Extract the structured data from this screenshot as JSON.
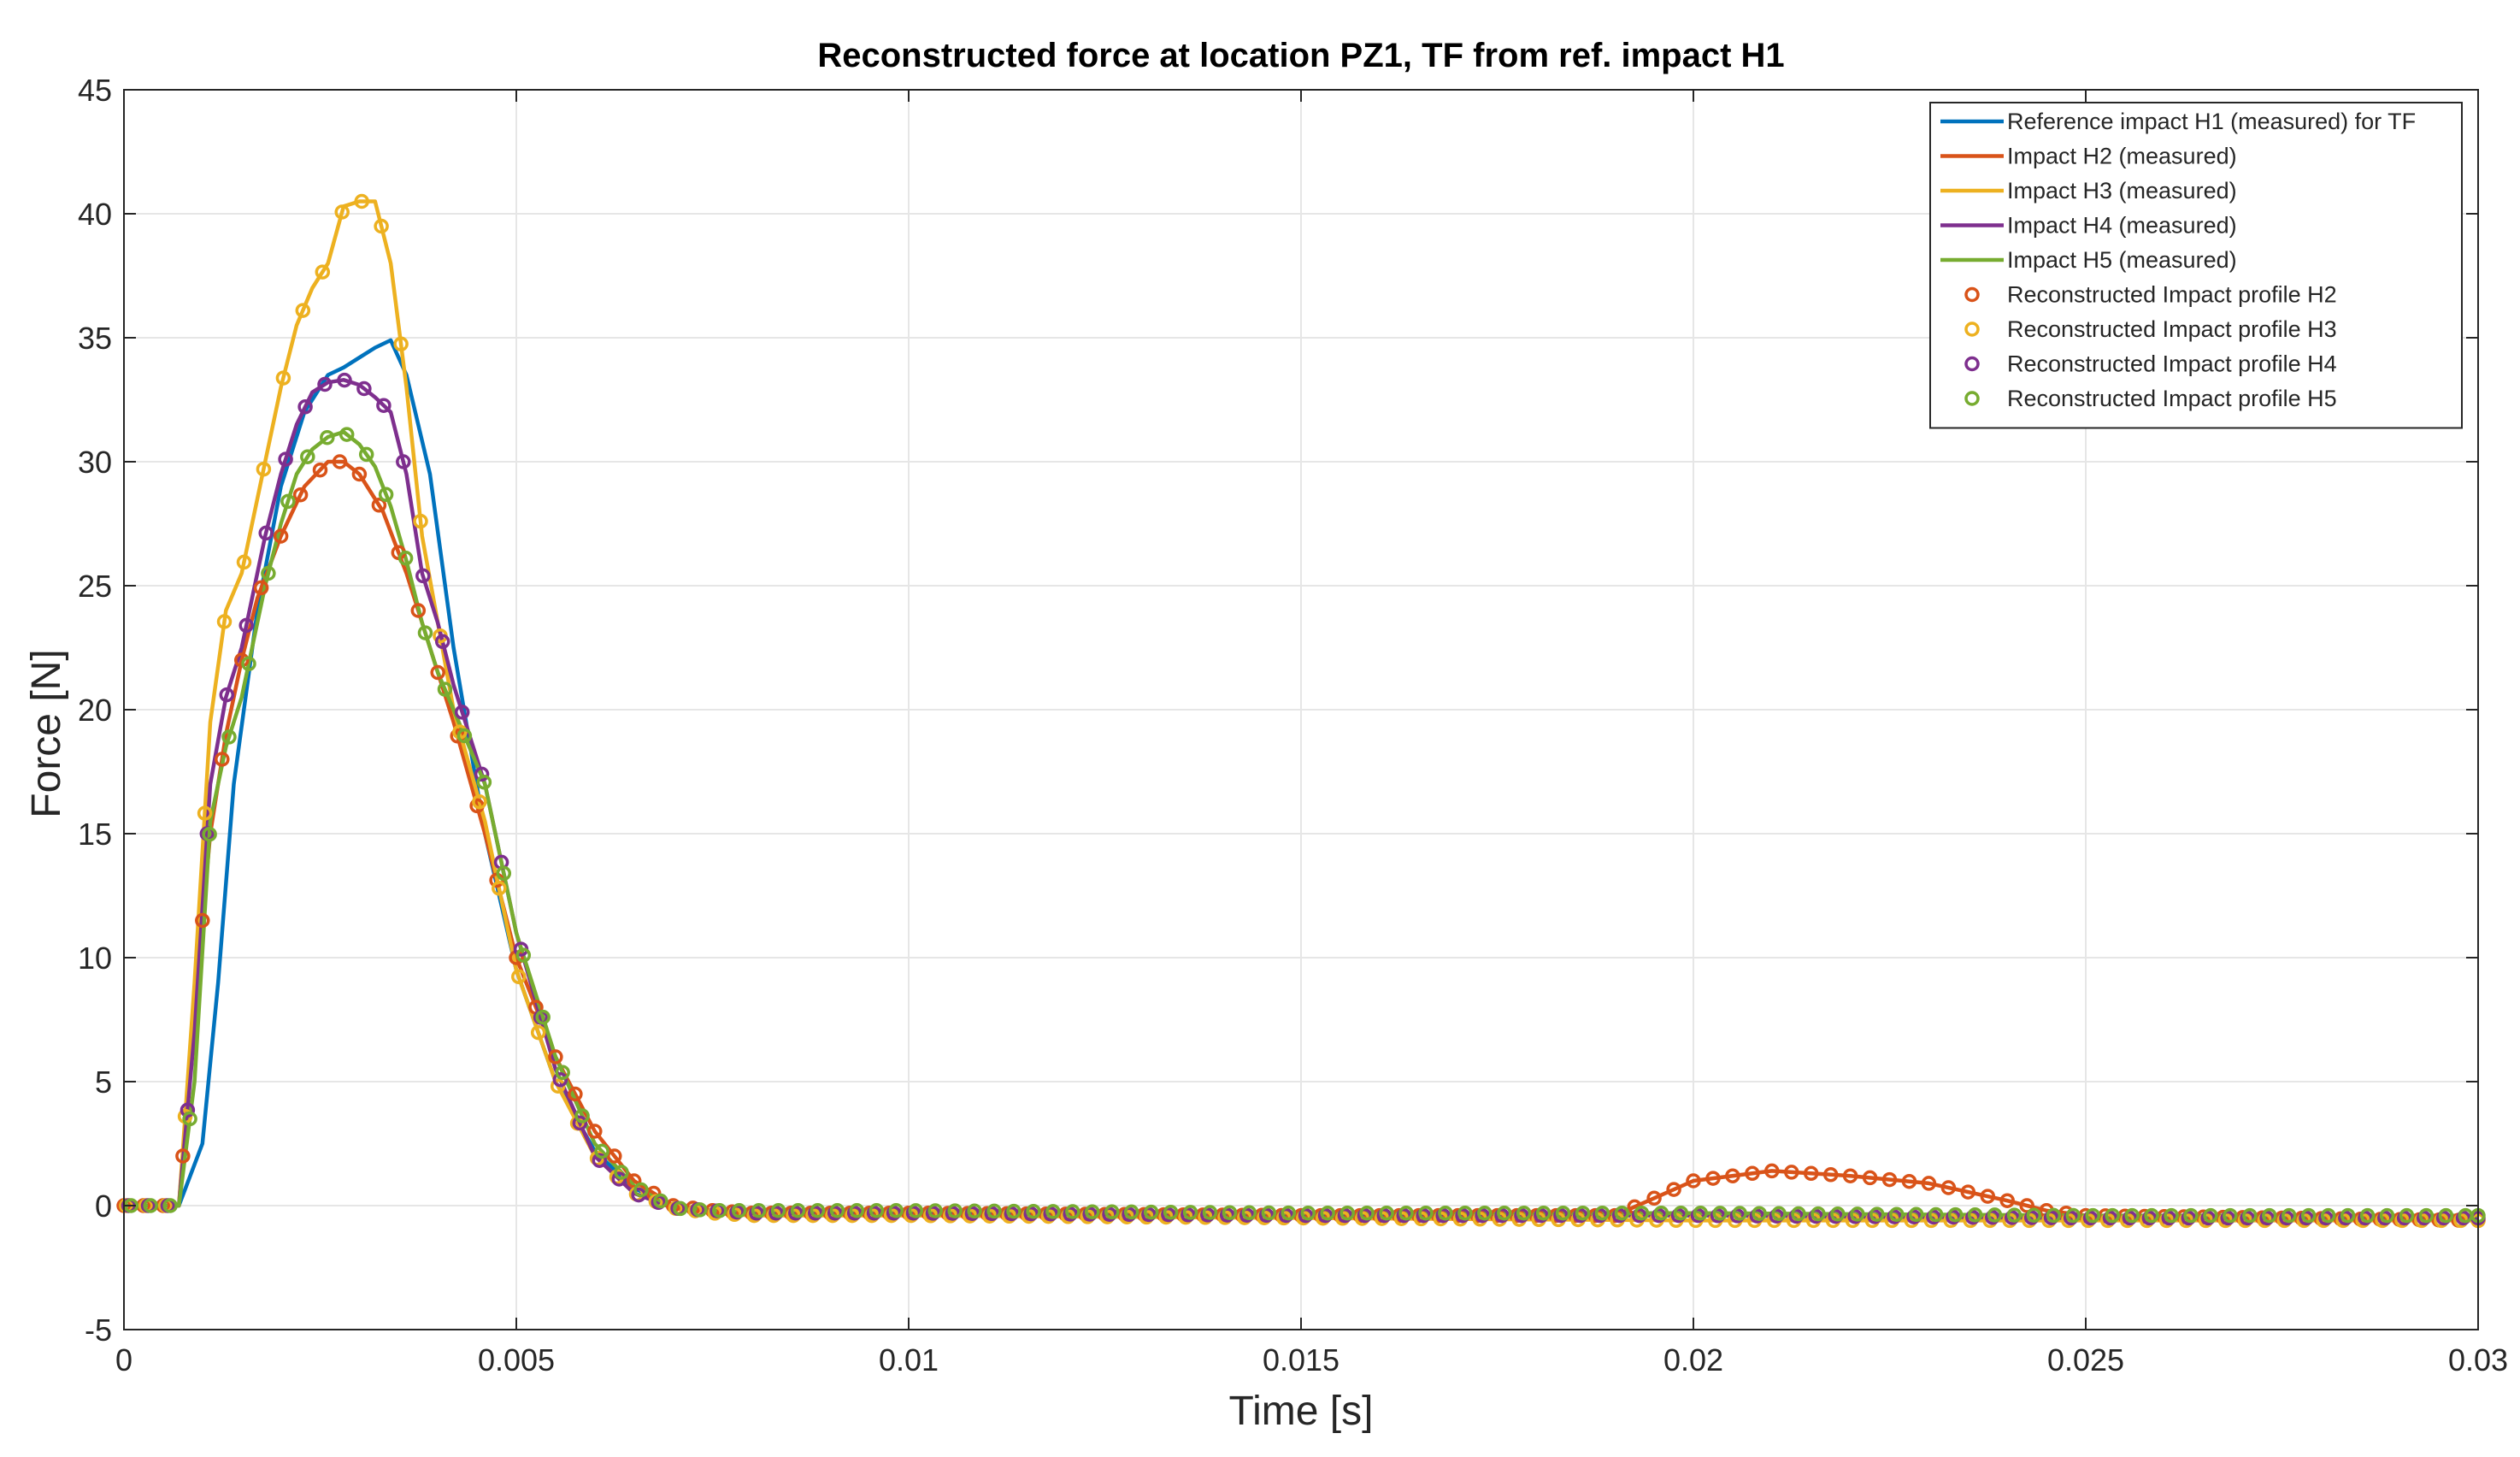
{
  "chart_data": {
    "type": "line",
    "title": "Reconstructed force at location PZ1, TF from ref. impact H1",
    "xlabel": "Time [s]",
    "ylabel": "Force [N]",
    "xlim": [
      0,
      0.03
    ],
    "ylim": [
      -5,
      45
    ],
    "xticks": [
      0,
      0.005,
      0.01,
      0.015,
      0.02,
      0.025,
      0.03
    ],
    "xtick_labels": [
      "0",
      "0.005",
      "0.01",
      "0.015",
      "0.02",
      "0.025",
      "0.03"
    ],
    "yticks": [
      -5,
      0,
      5,
      10,
      15,
      20,
      25,
      30,
      35,
      40,
      45
    ],
    "ytick_labels": [
      "-5",
      "0",
      "5",
      "10",
      "15",
      "20",
      "25",
      "30",
      "35",
      "40",
      "45"
    ],
    "grid": true,
    "legend_position": "top-right",
    "series": [
      {
        "name": "Reference impact H1 (measured) for TF",
        "color": "#0072BD",
        "style": "line",
        "x": [
          0,
          0.0007,
          0.001,
          0.0012,
          0.0014,
          0.0017,
          0.002,
          0.0023,
          0.0026,
          0.0028,
          0.003,
          0.0032,
          0.0034,
          0.0036,
          0.0039,
          0.0042,
          0.0046,
          0.005,
          0.0055,
          0.006,
          0.0065,
          0.007,
          0.0075,
          0.008,
          0.01,
          0.015,
          0.02,
          0.025,
          0.03
        ],
        "y": [
          0,
          0,
          2.5,
          9,
          17,
          24,
          29,
          32,
          33.5,
          33.8,
          34.2,
          34.6,
          34.9,
          33.5,
          29.5,
          22.5,
          15,
          9.5,
          5,
          2.2,
          0.7,
          0,
          -0.2,
          -0.2,
          -0.2,
          -0.3,
          -0.4,
          -0.5,
          -0.5
        ]
      },
      {
        "name": "Impact H2 (measured)",
        "color": "#D95319",
        "style": "line",
        "x": [
          0,
          0.0007,
          0.0009,
          0.0011,
          0.0013,
          0.0015,
          0.0017,
          0.002,
          0.0023,
          0.0026,
          0.0028,
          0.003,
          0.0033,
          0.0036,
          0.0039,
          0.0042,
          0.0046,
          0.005,
          0.0055,
          0.006,
          0.0065,
          0.007,
          0.0075,
          0.008,
          0.01,
          0.015,
          0.019,
          0.02,
          0.021,
          0.022,
          0.023,
          0.024,
          0.0245,
          0.025,
          0.03
        ],
        "y": [
          0,
          0,
          8,
          15,
          19,
          22,
          24.5,
          27,
          29,
          30,
          30,
          29.5,
          28,
          25.5,
          22.5,
          19.5,
          15,
          10,
          6,
          3,
          1,
          0,
          -0.2,
          -0.3,
          -0.3,
          -0.4,
          -0.4,
          1,
          1.4,
          1.2,
          0.9,
          0.2,
          -0.2,
          -0.4,
          -0.6
        ]
      },
      {
        "name": "Impact H3 (measured)",
        "color": "#EDB120",
        "style": "line",
        "x": [
          0,
          0.0007,
          0.0009,
          0.0011,
          0.0013,
          0.0015,
          0.0018,
          0.002,
          0.0022,
          0.0024,
          0.0026,
          0.0028,
          0.003,
          0.0032,
          0.0034,
          0.0036,
          0.0038,
          0.004,
          0.0042,
          0.0046,
          0.005,
          0.0055,
          0.006,
          0.0065,
          0.007,
          0.0075,
          0.008,
          0.01,
          0.015,
          0.02,
          0.025,
          0.03
        ],
        "y": [
          0,
          0,
          9,
          19.5,
          24,
          25.5,
          30,
          33,
          35.5,
          37,
          38,
          40.3,
          40.5,
          40.5,
          38,
          33,
          27,
          23.5,
          20,
          15.5,
          9.5,
          5,
          2,
          0.5,
          -0.1,
          -0.3,
          -0.4,
          -0.4,
          -0.5,
          -0.6,
          -0.6,
          -0.6
        ]
      },
      {
        "name": "Impact H4 (measured)",
        "color": "#7E2F8E",
        "style": "line",
        "x": [
          0,
          0.0007,
          0.0009,
          0.0011,
          0.0013,
          0.0015,
          0.0018,
          0.002,
          0.0022,
          0.0024,
          0.0026,
          0.0028,
          0.003,
          0.0032,
          0.0034,
          0.0036,
          0.0038,
          0.004,
          0.0042,
          0.0046,
          0.005,
          0.0055,
          0.006,
          0.0065,
          0.007,
          0.0075,
          0.008,
          0.01,
          0.015,
          0.02,
          0.025,
          0.03
        ],
        "y": [
          0,
          0,
          7,
          17,
          20.5,
          22.5,
          27,
          29.5,
          31.5,
          32.8,
          33.2,
          33.3,
          33.1,
          32.6,
          32,
          29.5,
          25.5,
          23.5,
          21,
          17,
          11,
          5.5,
          2,
          0.5,
          -0.1,
          -0.2,
          -0.3,
          -0.3,
          -0.4,
          -0.4,
          -0.5,
          -0.5
        ]
      },
      {
        "name": "Impact H5 (measured)",
        "color": "#77AC30",
        "style": "line",
        "x": [
          0,
          0.0007,
          0.0009,
          0.0011,
          0.0013,
          0.0015,
          0.0018,
          0.002,
          0.0022,
          0.0024,
          0.0026,
          0.0028,
          0.003,
          0.0032,
          0.0034,
          0.0036,
          0.0038,
          0.004,
          0.0042,
          0.0046,
          0.005,
          0.0055,
          0.006,
          0.0065,
          0.007,
          0.0075,
          0.008,
          0.01,
          0.015,
          0.02,
          0.025,
          0.03
        ],
        "y": [
          0,
          0,
          5,
          15.5,
          18.5,
          20.5,
          25,
          27.5,
          29.5,
          30.5,
          31,
          31.2,
          30.7,
          29.8,
          28.2,
          26,
          23.5,
          21.5,
          20,
          17,
          11,
          6,
          2.5,
          0.8,
          -0.1,
          -0.2,
          -0.2,
          -0.2,
          -0.3,
          -0.3,
          -0.4,
          -0.4
        ]
      },
      {
        "name": "Reconstructed Impact profile H2",
        "color": "#D95319",
        "style": "markers",
        "ref": 1
      },
      {
        "name": "Reconstructed Impact profile H3",
        "color": "#EDB120",
        "style": "markers",
        "ref": 2
      },
      {
        "name": "Reconstructed Impact profile H4",
        "color": "#7E2F8E",
        "style": "markers",
        "ref": 3
      },
      {
        "name": "Reconstructed Impact profile H5",
        "color": "#77AC30",
        "style": "markers",
        "ref": 4
      }
    ]
  }
}
